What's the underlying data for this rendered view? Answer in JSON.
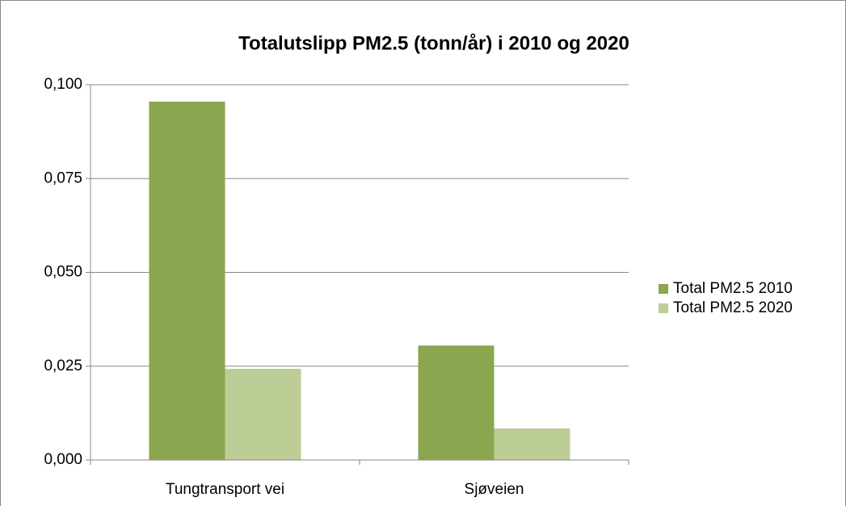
{
  "chart_data": {
    "type": "bar",
    "title": "Totalutslipp PM2.5 (tonn/år) i 2010 og 2020",
    "categories": [
      "Tungtransport vei",
      "Sjøveien"
    ],
    "series": [
      {
        "name": "Total PM2.5 2010",
        "color": "#8aa64f",
        "values": [
          0.0955,
          0.0305
        ]
      },
      {
        "name": "Total PM2.5 2020",
        "color": "#bcce96",
        "values": [
          0.0243,
          0.0084
        ]
      }
    ],
    "ylim": [
      0,
      0.1
    ],
    "yticks": [
      {
        "value": 0,
        "label": "0,000"
      },
      {
        "value": 0.025,
        "label": "0,025"
      },
      {
        "value": 0.05,
        "label": "0,050"
      },
      {
        "value": 0.075,
        "label": "0,075"
      },
      {
        "value": 0.1,
        "label": "0,100"
      }
    ],
    "grid": true,
    "legend": "right"
  }
}
